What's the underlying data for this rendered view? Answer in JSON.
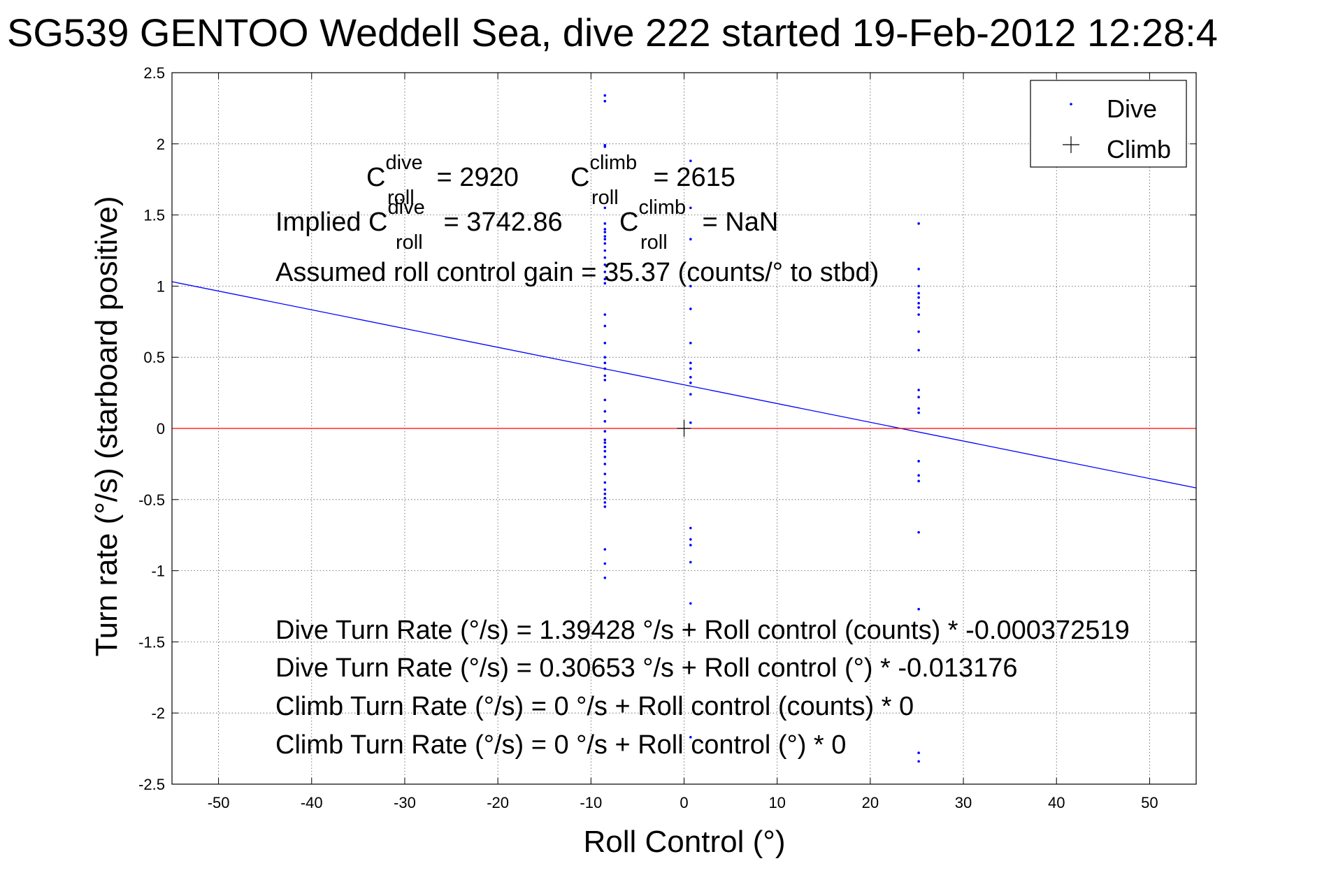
{
  "chart_data": {
    "type": "scatter",
    "title": "SG539 GENTOO Weddell Sea, dive 222 started 19-Feb-2012 12:28:4",
    "xlabel": "Roll Control (°)",
    "ylabel": "Turn rate (°/s) (starboard positive)",
    "xlim": [
      -55,
      55
    ],
    "ylim": [
      -2.5,
      2.5
    ],
    "xticks": [
      -50,
      -40,
      -30,
      -20,
      -10,
      0,
      10,
      20,
      30,
      40,
      50
    ],
    "yticks": [
      -2.5,
      -2,
      -1.5,
      -1,
      -0.5,
      0,
      0.5,
      1,
      1.5,
      2,
      2.5
    ],
    "grid": true,
    "legend_position": "top-right",
    "legend": [
      "Dive",
      "Climb"
    ],
    "colors": {
      "dive": "#0000ff",
      "climb": "#000000",
      "fit": "#0000ff",
      "zero_line": "#ff0000"
    },
    "series": [
      {
        "name": "Dive",
        "marker": "dot",
        "points": [
          [
            -8.5,
            2.34
          ],
          [
            -8.5,
            2.3
          ],
          [
            -8.5,
            1.99
          ],
          [
            -8.5,
            1.98
          ],
          [
            -8.5,
            1.55
          ],
          [
            -8.5,
            1.44
          ],
          [
            -8.5,
            1.4
          ],
          [
            -8.5,
            1.38
          ],
          [
            -8.5,
            1.35
          ],
          [
            -8.5,
            1.33
          ],
          [
            -8.5,
            1.3
          ],
          [
            -8.5,
            1.25
          ],
          [
            -8.5,
            1.2
          ],
          [
            -8.5,
            1.15
          ],
          [
            -8.5,
            1.1
          ],
          [
            -8.5,
            1.05
          ],
          [
            -8.5,
            1.02
          ],
          [
            -8.5,
            0.8
          ],
          [
            -8.5,
            0.72
          ],
          [
            -8.5,
            0.6
          ],
          [
            -8.5,
            0.5
          ],
          [
            -8.5,
            0.46
          ],
          [
            -8.5,
            0.42
          ],
          [
            -8.5,
            0.37
          ],
          [
            -8.5,
            0.34
          ],
          [
            -8.5,
            0.2
          ],
          [
            -8.5,
            0.12
          ],
          [
            -8.5,
            0.05
          ],
          [
            -8.5,
            -0.02
          ],
          [
            -8.5,
            -0.08
          ],
          [
            -8.5,
            -0.1
          ],
          [
            -8.5,
            -0.13
          ],
          [
            -8.5,
            -0.16
          ],
          [
            -8.5,
            -0.2
          ],
          [
            -8.5,
            -0.25
          ],
          [
            -8.5,
            -0.32
          ],
          [
            -8.5,
            -0.38
          ],
          [
            -8.5,
            -0.43
          ],
          [
            -8.5,
            -0.46
          ],
          [
            -8.5,
            -0.49
          ],
          [
            -8.5,
            -0.52
          ],
          [
            -8.5,
            -0.55
          ],
          [
            -8.5,
            -0.85
          ],
          [
            -8.5,
            -0.95
          ],
          [
            -8.5,
            -1.05
          ],
          [
            0.7,
            1.88
          ],
          [
            0.7,
            1.55
          ],
          [
            0.7,
            1.33
          ],
          [
            0.7,
            1.0
          ],
          [
            0.7,
            0.84
          ],
          [
            0.7,
            0.6
          ],
          [
            0.7,
            0.46
          ],
          [
            0.7,
            0.42
          ],
          [
            0.7,
            0.36
          ],
          [
            0.7,
            0.32
          ],
          [
            0.7,
            0.24
          ],
          [
            0.7,
            0.04
          ],
          [
            0.7,
            -0.7
          ],
          [
            0.7,
            -0.78
          ],
          [
            0.7,
            -0.82
          ],
          [
            0.7,
            -0.94
          ],
          [
            0.7,
            -1.23
          ],
          [
            0.7,
            -2.17
          ],
          [
            25.2,
            1.44
          ],
          [
            25.2,
            1.12
          ],
          [
            25.2,
            1.0
          ],
          [
            25.2,
            0.95
          ],
          [
            25.2,
            0.92
          ],
          [
            25.2,
            0.88
          ],
          [
            25.2,
            0.85
          ],
          [
            25.2,
            0.8
          ],
          [
            25.2,
            0.68
          ],
          [
            25.2,
            0.55
          ],
          [
            25.2,
            0.27
          ],
          [
            25.2,
            0.22
          ],
          [
            25.2,
            0.14
          ],
          [
            25.2,
            0.11
          ],
          [
            25.2,
            -0.23
          ],
          [
            25.2,
            -0.33
          ],
          [
            25.2,
            -0.37
          ],
          [
            25.2,
            -0.73
          ],
          [
            25.2,
            -1.27
          ],
          [
            25.2,
            -2.28
          ],
          [
            25.2,
            -2.34
          ]
        ]
      },
      {
        "name": "Climb",
        "marker": "plus",
        "points": [
          [
            0.0,
            0.0
          ]
        ]
      }
    ],
    "lines": [
      {
        "kind": "fit",
        "x": [
          -55,
          55
        ],
        "y": [
          1.0312,
          -0.4182
        ]
      },
      {
        "kind": "zero",
        "x": [
          -55,
          55
        ],
        "y": [
          0,
          0
        ]
      }
    ],
    "annotations": {
      "c_dive": {
        "base": "C",
        "sup": "dive",
        "sub": "roll",
        "value": " = 2920"
      },
      "c_climb": {
        "base": "C",
        "sup": "climb",
        "sub": "roll",
        "value": " = 2615"
      },
      "implied_prefix": "Implied C",
      "implied_dive": {
        "sup": "dive",
        "sub": "roll",
        "value": " = 3742.86"
      },
      "implied_climb": {
        "base": "C",
        "sup": "climb",
        "sub": "roll",
        "value": " = NaN"
      },
      "gain": "Assumed roll control gain = 35.37 (counts/° to stbd)",
      "eq1": "Dive Turn Rate (°/s) = 1.39428 °/s + Roll control (counts) * -0.000372519",
      "eq2": "Dive Turn Rate (°/s) = 0.30653 °/s + Roll control (°) * -0.013176",
      "eq3": "Climb Turn Rate (°/s) = 0 °/s + Roll control (counts) * 0",
      "eq4": "Climb Turn Rate (°/s) = 0 °/s + Roll control (°) * 0"
    }
  }
}
